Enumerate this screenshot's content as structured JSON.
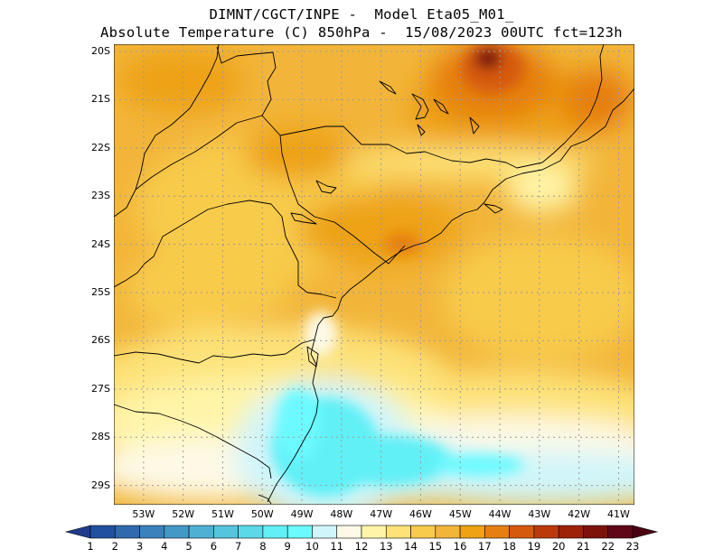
{
  "title": {
    "line1": "DIMNT/CGCT/INPE -  Model Eta05_M01_",
    "line2": "Absolute Temperature (C) 850hPa -  15/08/2023 00UTC fct=123h"
  },
  "map": {
    "lat_labels": [
      "20S",
      "21S",
      "22S",
      "23S",
      "24S",
      "25S",
      "26S",
      "27S",
      "28S",
      "29S"
    ],
    "lon_labels": [
      "53W",
      "52W",
      "51W",
      "50W",
      "49W",
      "48W",
      "47W",
      "46W",
      "45W",
      "44W",
      "43W",
      "42W",
      "41W"
    ],
    "lat_range": [
      -29.4,
      -19.85
    ],
    "lon_range": [
      -53.75,
      -40.6
    ],
    "grid": true
  },
  "colorbar": {
    "labels": [
      "1",
      "2",
      "3",
      "4",
      "5",
      "6",
      "7",
      "8",
      "9",
      "10",
      "11",
      "12",
      "13",
      "14",
      "15",
      "16",
      "17",
      "18",
      "19",
      "20",
      "21",
      "22",
      "23"
    ],
    "colors": [
      "#1f3c8c",
      "#2150a0",
      "#2f6aaf",
      "#3a82bc",
      "#4498c6",
      "#4fb0d4",
      "#55c5dd",
      "#5bd9e8",
      "#61f0f6",
      "#6afaff",
      "#d0f5fa",
      "#fdf9e6",
      "#fff4a8",
      "#fde278",
      "#f8cb4c",
      "#f2b53a",
      "#eea214",
      "#e67f10",
      "#d55a0c",
      "#bc3a0a",
      "#9e2208",
      "#7c120a",
      "#600818",
      "#4a0010"
    ]
  }
}
